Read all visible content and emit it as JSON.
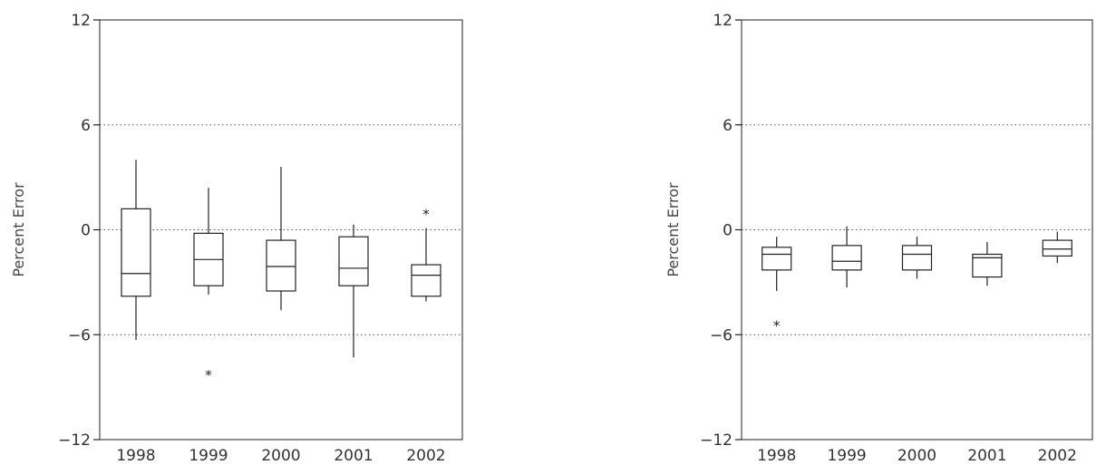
{
  "chart_data": [
    {
      "type": "box",
      "ylabel": "Percent Error",
      "ylim": [
        -12,
        12
      ],
      "yticks": [
        12,
        6,
        0,
        -6,
        -12
      ],
      "ytick_labels": [
        "12",
        "6",
        "0",
        "−6",
        "−12"
      ],
      "gridlines": [
        6,
        0,
        -6
      ],
      "categories": [
        "1998",
        "1999",
        "2000",
        "2001",
        "2002"
      ],
      "boxes": [
        {
          "min": -6.3,
          "q1": -3.8,
          "median": -2.5,
          "q3": 1.2,
          "max": 4.0,
          "outliers": []
        },
        {
          "min": -3.7,
          "q1": -3.2,
          "median": -1.7,
          "q3": -0.2,
          "max": 2.4,
          "outliers": [
            -8.1
          ]
        },
        {
          "min": -4.6,
          "q1": -3.5,
          "median": -2.1,
          "q3": -0.6,
          "max": 3.6,
          "outliers": []
        },
        {
          "min": -7.3,
          "q1": -3.2,
          "median": -2.2,
          "q3": -0.4,
          "max": 0.3,
          "outliers": []
        },
        {
          "min": -4.1,
          "q1": -3.8,
          "median": -2.6,
          "q3": -2.0,
          "max": 0.1,
          "outliers": [
            1.1
          ]
        }
      ]
    },
    {
      "type": "box",
      "ylabel": "Percent Error",
      "ylim": [
        -12,
        12
      ],
      "yticks": [
        12,
        6,
        0,
        -6,
        -12
      ],
      "ytick_labels": [
        "12",
        "6",
        "0",
        "−6",
        "−12"
      ],
      "gridlines": [
        6,
        0,
        -6
      ],
      "categories": [
        "1998",
        "1999",
        "2000",
        "2001",
        "2002"
      ],
      "boxes": [
        {
          "min": -3.5,
          "q1": -2.3,
          "median": -1.4,
          "q3": -1.0,
          "max": -0.4,
          "outliers": [
            -5.3
          ]
        },
        {
          "min": -3.3,
          "q1": -2.3,
          "median": -1.8,
          "q3": -0.9,
          "max": 0.2,
          "outliers": []
        },
        {
          "min": -2.8,
          "q1": -2.3,
          "median": -1.4,
          "q3": -0.9,
          "max": -0.4,
          "outliers": []
        },
        {
          "min": -3.2,
          "q1": -2.7,
          "median": -1.6,
          "q3": -1.4,
          "max": -0.7,
          "outliers": []
        },
        {
          "min": -1.9,
          "q1": -1.5,
          "median": -1.1,
          "q3": -0.6,
          "max": -0.1,
          "outliers": []
        }
      ]
    }
  ]
}
